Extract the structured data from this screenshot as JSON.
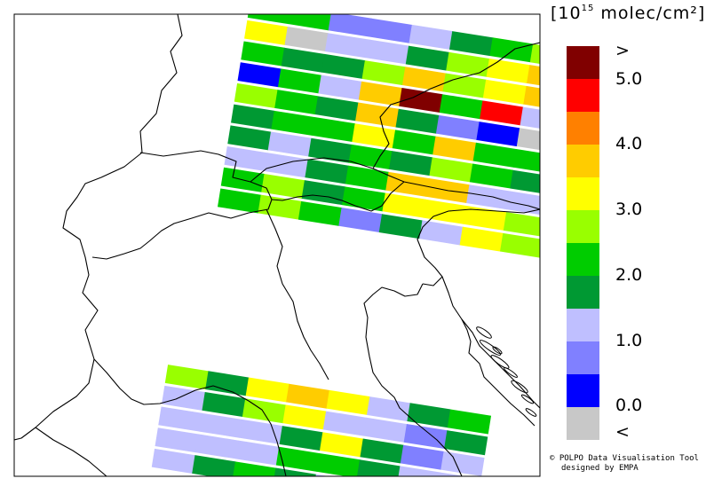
{
  "legend": {
    "unit_exponent": "15",
    "unit_text": "molec/cm²",
    "colors": [
      "#c8c8c8",
      "#0000ff",
      "#8080ff",
      "#bfbfff",
      "#009933",
      "#00cc00",
      "#99ff00",
      "#ffff00",
      "#ffcc00",
      "#ff8000",
      "#ff0000",
      "#800000"
    ],
    "labels": {
      "over": ">",
      "v5": "5.0",
      "v4": "4.0",
      "v3": "3.0",
      "v2": "2.0",
      "v1": "1.0",
      "v0": "0.0",
      "under": "<"
    }
  },
  "credit": {
    "line1": "© POLPO Data Visualisation Tool",
    "line2": "designed by EMPA"
  },
  "swaths": {
    "north": [
      [
        5,
        5,
        2,
        2,
        3,
        4,
        5,
        6
      ],
      [
        7,
        0,
        3,
        3,
        4,
        6,
        7,
        8
      ],
      [
        5,
        4,
        4,
        6,
        8,
        6,
        7,
        8
      ],
      [
        1,
        5,
        3,
        8,
        11,
        5,
        10,
        3
      ],
      [
        6,
        5,
        4,
        8,
        4,
        2,
        1,
        0
      ],
      [
        4,
        5,
        5,
        7,
        5,
        8,
        5,
        5
      ],
      [
        4,
        3,
        4,
        5,
        4,
        6,
        5,
        4
      ],
      [
        3,
        3,
        4,
        5,
        8,
        8,
        3,
        3
      ],
      [
        5,
        6,
        4,
        5,
        7,
        7,
        7,
        6
      ],
      [
        5,
        6,
        5,
        2,
        4,
        3,
        7,
        6
      ]
    ],
    "south": [
      [
        6,
        4,
        7,
        8,
        7,
        3,
        4,
        5
      ],
      [
        3,
        4,
        6,
        7,
        3,
        3,
        2,
        4
      ],
      [
        3,
        3,
        3,
        4,
        7,
        4,
        2,
        3
      ],
      [
        3,
        3,
        3,
        5,
        5,
        4,
        3,
        3
      ],
      [
        3,
        4,
        5,
        4,
        3,
        3,
        4,
        3
      ]
    ]
  }
}
